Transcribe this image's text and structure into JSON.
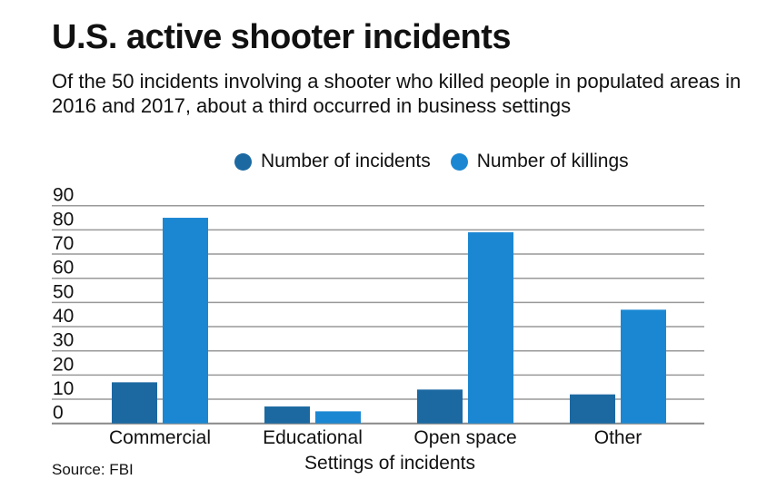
{
  "chart_data": {
    "type": "bar",
    "title": "U.S. active shooter incidents",
    "subtitle": "Of the 50 incidents involving a shooter who killed people in populated areas in 2016 and 2017, about a third occurred in business settings",
    "categories": [
      "Commercial",
      "Educational",
      "Open space",
      "Other"
    ],
    "series": [
      {
        "name": "Number of incidents",
        "values": [
          17,
          7,
          14,
          12
        ],
        "color": "#1c69a2"
      },
      {
        "name": "Number of killings",
        "values": [
          85,
          5,
          79,
          47
        ],
        "color": "#1b87d3"
      }
    ],
    "xlabel": "Settings of incidents",
    "ylabel": "",
    "ylim": [
      0,
      90
    ],
    "yticks": [
      "0",
      "10",
      "20",
      "30",
      "40",
      "50",
      "60",
      "70",
      "80",
      "90"
    ],
    "grid": true,
    "legend_position": "top-right",
    "source": "Source: FBI"
  }
}
